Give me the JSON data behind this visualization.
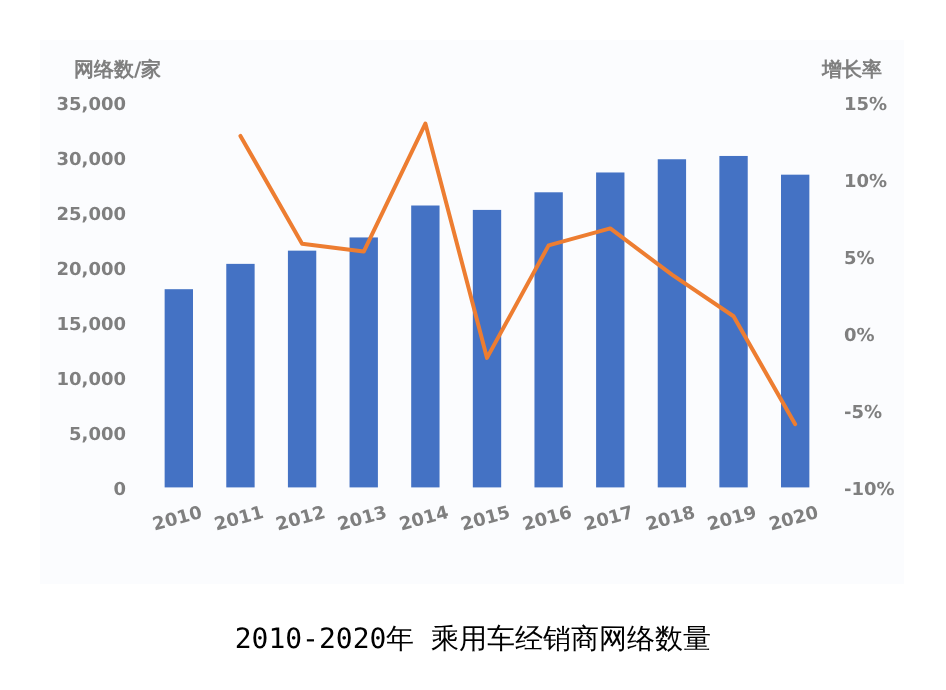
{
  "chart_data": {
    "type": "bar",
    "title": "2010-2020年 乘用车经销商网络数量",
    "ylabel": "网络数/家",
    "y2label": "增长率",
    "categories": [
      "2010",
      "2011",
      "2012",
      "2013",
      "2014",
      "2015",
      "2016",
      "2017",
      "2018",
      "2019",
      "2020"
    ],
    "series": [
      {
        "color": "#4472c4",
        "values": [
          18000,
          20300,
          21500,
          22700,
          25600,
          25200,
          26800,
          28600,
          29800,
          30100,
          28400
        ]
      },
      {
        "type": "line",
        "axis": "y2",
        "color": "#ed7d31",
        "values": [
          null,
          12.8,
          5.8,
          5.3,
          13.6,
          -1.6,
          5.7,
          6.8,
          3.8,
          1.1,
          -5.9
        ]
      }
    ],
    "ylim": [
      0,
      35000
    ],
    "yticks": [
      0,
      {
        "value": 5000,
        "label": "5,000"
      },
      {
        "value": 10000,
        "label": "10,000"
      },
      {
        "value": 15000,
        "label": "15,000"
      },
      {
        "value": 20000,
        "label": "20,000"
      },
      {
        "value": 25000,
        "label": "25,000"
      },
      {
        "value": 30000,
        "label": "30,000"
      },
      {
        "value": 35000,
        "label": "35,000"
      }
    ],
    "y2lim": [
      -10,
      15
    ],
    "y2ticks": [
      {
        "value": -10,
        "label": "-10%"
      },
      {
        "value": -5,
        "label": "-5%"
      },
      {
        "value": 0,
        "label": "0%"
      },
      {
        "value": 5,
        "label": "5%"
      },
      {
        "value": 10,
        "label": "10%"
      },
      {
        "value": 15,
        "label": "15%"
      }
    ]
  }
}
